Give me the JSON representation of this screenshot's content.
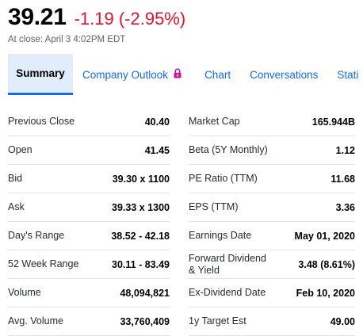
{
  "quote": {
    "price": "39.21",
    "change": "-1.19 (-2.95%)",
    "close_time": "At close: April 3 4:02PM EDT"
  },
  "colors": {
    "negative": "#eb0f29",
    "link": "#0f69ff",
    "active_tab_bg": "#e2edfb",
    "lock": "#c1199f"
  },
  "tabs": [
    {
      "label": "Summary",
      "active": true
    },
    {
      "label": "Company Outlook",
      "icon": "lock-icon"
    },
    {
      "label": "Chart"
    },
    {
      "label": "Conversations"
    },
    {
      "label": "Stati"
    }
  ],
  "stats": {
    "left": [
      {
        "label": "Previous Close",
        "value": "40.40"
      },
      {
        "label": "Open",
        "value": "41.45"
      },
      {
        "label": "Bid",
        "value": "39.30 x 1100"
      },
      {
        "label": "Ask",
        "value": "39.33 x 1300"
      },
      {
        "label": "Day's Range",
        "value": "38.52 - 42.18"
      },
      {
        "label": "52 Week Range",
        "value": "30.11 - 83.49"
      },
      {
        "label": "Volume",
        "value": "48,094,821"
      },
      {
        "label": "Avg. Volume",
        "value": "33,760,409"
      }
    ],
    "right": [
      {
        "label": "Market Cap",
        "value": "165.944B"
      },
      {
        "label": "Beta (5Y Monthly)",
        "value": "1.12"
      },
      {
        "label": "PE Ratio (TTM)",
        "value": "11.68"
      },
      {
        "label": "EPS (TTM)",
        "value": "3.36"
      },
      {
        "label": "Earnings Date",
        "value": "May 01, 2020"
      },
      {
        "label": "Forward Dividend & Yield",
        "value": "3.48 (8.61%)"
      },
      {
        "label": "Ex-Dividend Date",
        "value": "Feb 10, 2020"
      },
      {
        "label": "1y Target Est",
        "value": "49.00"
      }
    ]
  }
}
